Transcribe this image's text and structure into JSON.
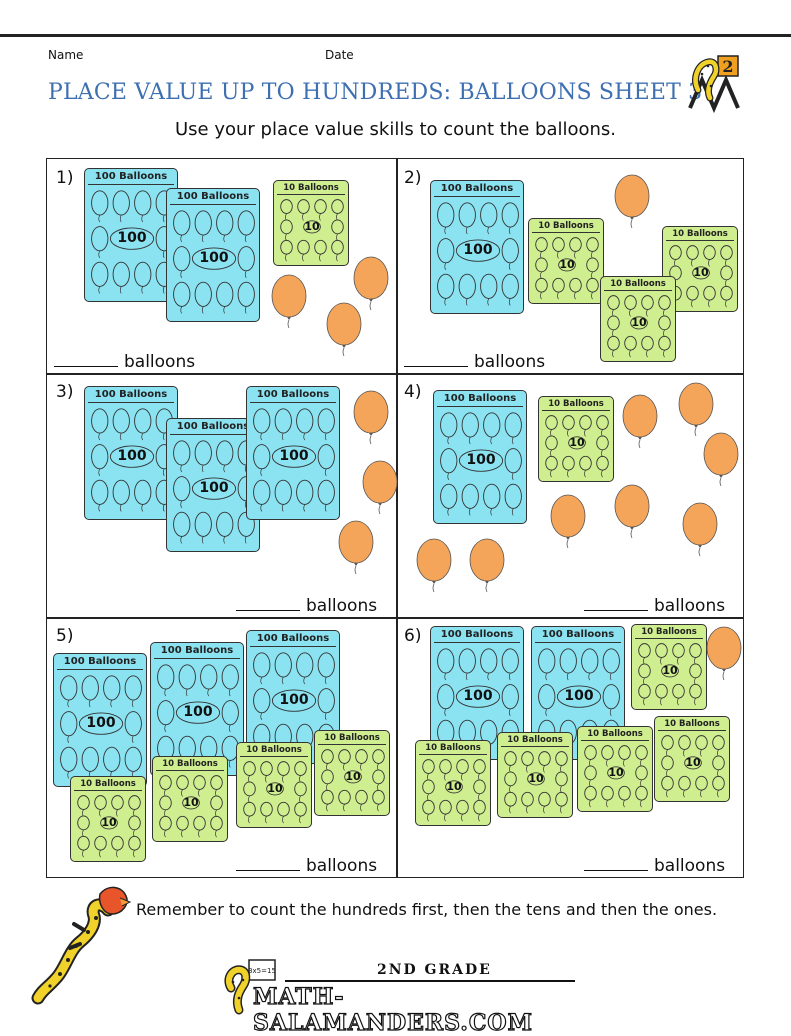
{
  "header": {
    "name_label": "Name",
    "date_label": "Date",
    "title": "PLACE VALUE UP TO HUNDREDS: BALLOONS SHEET 3",
    "subtitle": "Use your place value skills to count the balloons.",
    "logo_badge": "2"
  },
  "cards": {
    "hundred_label": "100 Balloons",
    "hundred_value": "100",
    "ten_label": "10 Balloons",
    "ten_value": "10"
  },
  "questions": [
    {
      "number": "1)",
      "answer_suffix": "balloons",
      "hundreds": 2,
      "tens": 1,
      "ones": 3
    },
    {
      "number": "2)",
      "answer_suffix": "balloons",
      "hundreds": 1,
      "tens": 3,
      "ones": 1
    },
    {
      "number": "3)",
      "answer_suffix": "balloons",
      "hundreds": 3,
      "tens": 0,
      "ones": 3
    },
    {
      "number": "4)",
      "answer_suffix": "balloons",
      "hundreds": 1,
      "tens": 1,
      "ones": 8
    },
    {
      "number": "5)",
      "answer_suffix": "balloons",
      "hundreds": 3,
      "tens": 4,
      "ones": 0
    },
    {
      "number": "6)",
      "answer_suffix": "balloons",
      "hundreds": 2,
      "tens": 5,
      "ones": 1
    }
  ],
  "footer": {
    "reminder": "Remember to count the hundreds first, then the tens and then the ones.",
    "grade": "2ND GRADE",
    "site": "MATH-SALAMANDERS.COM",
    "board_text": "3x5=15"
  },
  "colors": {
    "title_blue": "#3d6fb1",
    "hundred_card": "#8be3f2",
    "ten_card": "#cfee8f",
    "balloon_orange": "#f5a55a"
  }
}
